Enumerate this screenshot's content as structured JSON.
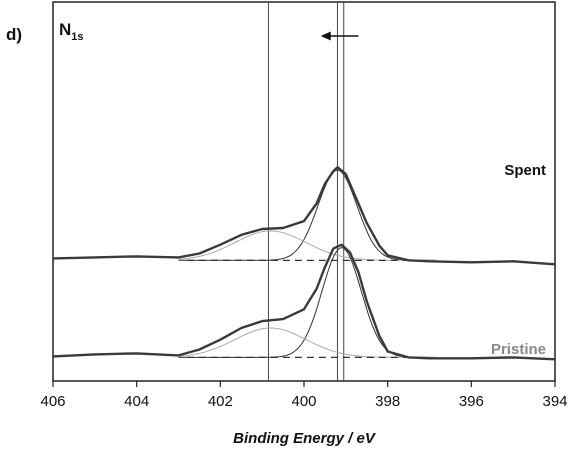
{
  "chart_data": {
    "type": "line",
    "panel_label": "d)",
    "title": "N",
    "title_subscript": "1s",
    "xlabel": "Binding Energy / eV",
    "xlim": [
      406,
      394
    ],
    "x_reversed": true,
    "x_ticks": [
      "406",
      "404",
      "402",
      "400",
      "398",
      "396",
      "394"
    ],
    "y_ticks": false,
    "grid": false,
    "reference_lines_x": [
      400.85,
      399.2,
      399.05
    ],
    "shift_arrow": {
      "direction": "toward lower binding energy",
      "from_x": 398.7,
      "to_x": 399.6
    },
    "components": {
      "peak_a_center_pristine": 399.1,
      "peak_a_center_spent": 399.2,
      "peak_b_center": 400.8,
      "fwhm_a": 1.1,
      "fwhm_b": 2.0
    },
    "series": [
      {
        "name": "Spent",
        "color": "#111111",
        "baseline_y_units": 1.17,
        "x": [
          406.0,
          405.0,
          404.0,
          403.0,
          402.5,
          402.0,
          401.5,
          401.0,
          400.5,
          400.0,
          399.7,
          399.5,
          399.3,
          399.2,
          399.0,
          398.8,
          398.5,
          398.2,
          398.0,
          397.5,
          397.0,
          396.0,
          395.0,
          394.0
        ],
        "y": [
          1.19,
          1.2,
          1.21,
          1.2,
          1.24,
          1.33,
          1.43,
          1.49,
          1.5,
          1.57,
          1.75,
          1.95,
          2.08,
          2.12,
          2.05,
          1.85,
          1.55,
          1.32,
          1.22,
          1.17,
          1.16,
          1.15,
          1.16,
          1.13
        ]
      },
      {
        "name": "Pristine",
        "color": "#888888",
        "baseline_y_units": 0.18,
        "x": [
          406.0,
          405.0,
          404.0,
          403.0,
          402.5,
          402.0,
          401.5,
          401.0,
          400.5,
          400.0,
          399.7,
          399.5,
          399.3,
          399.1,
          398.9,
          398.7,
          398.5,
          398.2,
          398.0,
          397.5,
          397.0,
          396.0,
          395.0,
          394.0
        ],
        "y": [
          0.19,
          0.21,
          0.22,
          0.2,
          0.26,
          0.36,
          0.48,
          0.55,
          0.57,
          0.67,
          0.88,
          1.1,
          1.29,
          1.33,
          1.25,
          1.05,
          0.75,
          0.4,
          0.24,
          0.18,
          0.17,
          0.17,
          0.18,
          0.16
        ]
      }
    ]
  }
}
